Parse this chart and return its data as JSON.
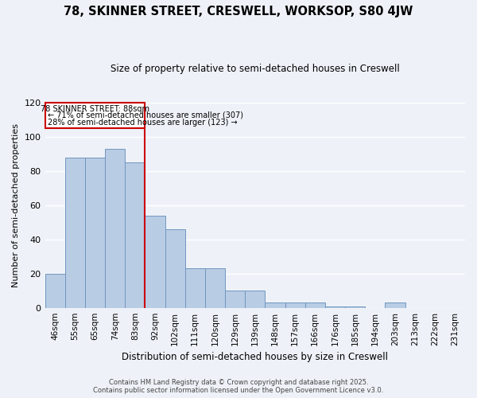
{
  "title1": "78, SKINNER STREET, CRESWELL, WORKSOP, S80 4JW",
  "title2": "Size of property relative to semi-detached houses in Creswell",
  "xlabel": "Distribution of semi-detached houses by size in Creswell",
  "ylabel": "Number of semi-detached properties",
  "categories": [
    "46sqm",
    "55sqm",
    "65sqm",
    "74sqm",
    "83sqm",
    "92sqm",
    "102sqm",
    "111sqm",
    "120sqm",
    "129sqm",
    "139sqm",
    "148sqm",
    "157sqm",
    "166sqm",
    "176sqm",
    "185sqm",
    "194sqm",
    "203sqm",
    "213sqm",
    "222sqm",
    "231sqm"
  ],
  "values": [
    20,
    88,
    88,
    93,
    85,
    54,
    46,
    23,
    23,
    10,
    10,
    3,
    3,
    3,
    1,
    1,
    0,
    3,
    0,
    0,
    0
  ],
  "bar_color": "#b8cce4",
  "bar_edge_color": "#7096c0",
  "vline_label": "78 SKINNER STREET: 88sqm",
  "annotation1": "← 71% of semi-detached houses are smaller (307)",
  "annotation2": "28% of semi-detached houses are larger (123) →",
  "box_color": "#cc0000",
  "ylim_max": 120,
  "yticks": [
    0,
    20,
    40,
    60,
    80,
    100,
    120
  ],
  "footer1": "Contains HM Land Registry data © Crown copyright and database right 2025.",
  "footer2": "Contains public sector information licensed under the Open Government Licence v3.0.",
  "bg_color": "#eef2f8"
}
